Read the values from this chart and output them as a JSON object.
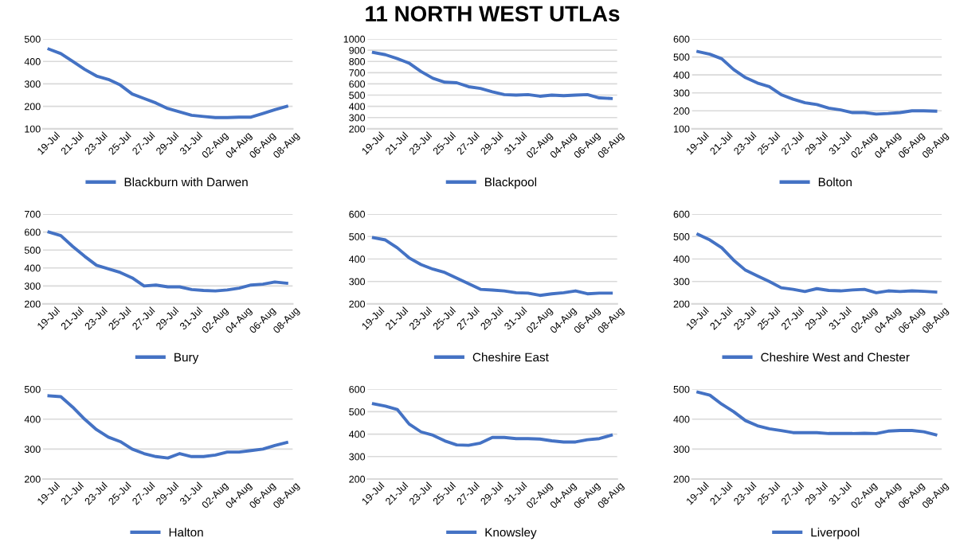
{
  "chart_data": [
    {
      "type": "line",
      "categories": [
        "19-Jul",
        null,
        "21-Jul",
        null,
        "23-Jul",
        null,
        "25-Jul",
        null,
        "27-Jul",
        null,
        "29-Jul",
        null,
        "31-Jul",
        null,
        "02-Aug",
        null,
        "04-Aug",
        null,
        "06-Aug",
        null,
        "08-Aug"
      ],
      "ylim": [
        100,
        500
      ],
      "yticks": [
        100,
        200,
        300,
        400,
        500
      ],
      "grid": "y",
      "legend": "bottom",
      "marker": "none",
      "line_style": "solid",
      "series": [
        {
          "name": "Blackburn with Darwen",
          "color": "#4472c4",
          "values": [
            455,
            435,
            400,
            365,
            335,
            320,
            295,
            255,
            235,
            215,
            190,
            175,
            160,
            155,
            150,
            150,
            152,
            152,
            168,
            185,
            200
          ]
        }
      ]
    },
    {
      "type": "line",
      "title": "11 NORTH WEST UTLAs",
      "categories": [
        "19-Jul",
        null,
        "21-Jul",
        null,
        "23-Jul",
        null,
        "25-Jul",
        null,
        "27-Jul",
        null,
        "29-Jul",
        null,
        "31-Jul",
        null,
        "02-Aug",
        null,
        "04-Aug",
        null,
        "06-Aug",
        null,
        "08-Aug"
      ],
      "ylim": [
        200,
        1000
      ],
      "yticks": [
        200,
        300,
        400,
        500,
        600,
        700,
        800,
        900,
        1000
      ],
      "grid": "y",
      "legend": "bottom",
      "marker": "none",
      "line_style": "solid",
      "series": [
        {
          "name": "Blackpool",
          "color": "#4472c4",
          "values": [
            880,
            860,
            825,
            785,
            710,
            650,
            615,
            610,
            575,
            560,
            530,
            505,
            500,
            505,
            490,
            500,
            495,
            500,
            505,
            475,
            470
          ]
        }
      ]
    },
    {
      "type": "line",
      "categories": [
        "19-Jul",
        null,
        "21-Jul",
        null,
        "23-Jul",
        null,
        "25-Jul",
        null,
        "27-Jul",
        null,
        "29-Jul",
        null,
        "31-Jul",
        null,
        "02-Aug",
        null,
        "04-Aug",
        null,
        "06-Aug",
        null,
        "08-Aug"
      ],
      "ylim": [
        100,
        600
      ],
      "yticks": [
        100,
        200,
        300,
        400,
        500,
        600
      ],
      "grid": "y",
      "legend": "bottom",
      "marker": "none",
      "line_style": "solid",
      "series": [
        {
          "name": "Bolton",
          "color": "#4472c4",
          "values": [
            530,
            515,
            490,
            430,
            385,
            355,
            335,
            290,
            265,
            245,
            235,
            215,
            205,
            190,
            190,
            182,
            185,
            190,
            200,
            200,
            198
          ]
        }
      ]
    },
    {
      "type": "line",
      "categories": [
        "19-Jul",
        null,
        "21-Jul",
        null,
        "23-Jul",
        null,
        "25-Jul",
        null,
        "27-Jul",
        null,
        "29-Jul",
        null,
        "31-Jul",
        null,
        "02-Aug",
        null,
        "04-Aug",
        null,
        "06-Aug",
        null,
        "08-Aug"
      ],
      "ylim": [
        200,
        700
      ],
      "yticks": [
        200,
        300,
        400,
        500,
        600,
        700
      ],
      "grid": "y",
      "legend": "bottom",
      "marker": "none",
      "line_style": "solid",
      "series": [
        {
          "name": "Bury",
          "color": "#4472c4",
          "values": [
            600,
            580,
            520,
            465,
            415,
            395,
            375,
            345,
            300,
            305,
            295,
            295,
            280,
            275,
            272,
            278,
            288,
            305,
            310,
            322,
            315
          ]
        }
      ]
    },
    {
      "type": "line",
      "categories": [
        "19-Jul",
        null,
        "21-Jul",
        null,
        "23-Jul",
        null,
        "25-Jul",
        null,
        "27-Jul",
        null,
        "29-Jul",
        null,
        "31-Jul",
        null,
        "02-Aug",
        null,
        "04-Aug",
        null,
        "06-Aug",
        null,
        "08-Aug"
      ],
      "ylim": [
        200,
        600
      ],
      "yticks": [
        200,
        300,
        400,
        500,
        600
      ],
      "grid": "y",
      "legend": "bottom",
      "marker": "none",
      "line_style": "solid",
      "series": [
        {
          "name": "Cheshire East",
          "color": "#4472c4",
          "values": [
            495,
            485,
            450,
            405,
            375,
            355,
            340,
            315,
            290,
            265,
            262,
            258,
            250,
            248,
            238,
            245,
            250,
            258,
            245,
            248,
            248
          ]
        }
      ]
    },
    {
      "type": "line",
      "categories": [
        "19-Jul",
        null,
        "21-Jul",
        null,
        "23-Jul",
        null,
        "25-Jul",
        null,
        "27-Jul",
        null,
        "29-Jul",
        null,
        "31-Jul",
        null,
        "02-Aug",
        null,
        "04-Aug",
        null,
        "06-Aug",
        null,
        "08-Aug"
      ],
      "ylim": [
        200,
        600
      ],
      "yticks": [
        200,
        300,
        400,
        500,
        600
      ],
      "grid": "y",
      "legend": "bottom",
      "marker": "none",
      "line_style": "solid",
      "series": [
        {
          "name": "Cheshire West and Chester",
          "color": "#4472c4",
          "values": [
            510,
            485,
            450,
            395,
            350,
            325,
            300,
            272,
            265,
            255,
            268,
            260,
            258,
            262,
            265,
            250,
            258,
            255,
            258,
            256,
            253
          ]
        }
      ]
    },
    {
      "type": "line",
      "categories": [
        "19-Jul",
        null,
        "21-Jul",
        null,
        "23-Jul",
        null,
        "25-Jul",
        null,
        "27-Jul",
        null,
        "29-Jul",
        null,
        "31-Jul",
        null,
        "02-Aug",
        null,
        "04-Aug",
        null,
        "06-Aug",
        null,
        "08-Aug"
      ],
      "ylim": [
        200,
        500
      ],
      "yticks": [
        200,
        300,
        400,
        500
      ],
      "grid": "y",
      "legend": "bottom",
      "marker": "none",
      "line_style": "solid",
      "series": [
        {
          "name": "Halton",
          "color": "#4472c4",
          "values": [
            478,
            475,
            440,
            400,
            365,
            340,
            325,
            300,
            285,
            275,
            270,
            285,
            275,
            275,
            280,
            290,
            290,
            295,
            300,
            312,
            322
          ]
        }
      ]
    },
    {
      "type": "line",
      "categories": [
        "19-Jul",
        null,
        "21-Jul",
        null,
        "23-Jul",
        null,
        "25-Jul",
        null,
        "27-Jul",
        null,
        "29-Jul",
        null,
        "31-Jul",
        null,
        "02-Aug",
        null,
        "04-Aug",
        null,
        "06-Aug",
        null,
        "08-Aug"
      ],
      "ylim": [
        200,
        600
      ],
      "yticks": [
        200,
        300,
        400,
        500,
        600
      ],
      "grid": "y",
      "legend": "bottom",
      "marker": "none",
      "line_style": "solid",
      "series": [
        {
          "name": "Knowsley",
          "color": "#4472c4",
          "values": [
            535,
            525,
            510,
            445,
            410,
            395,
            370,
            352,
            350,
            360,
            385,
            385,
            380,
            380,
            378,
            370,
            365,
            365,
            375,
            380,
            395
          ]
        }
      ]
    },
    {
      "type": "line",
      "categories": [
        "19-Jul",
        null,
        "21-Jul",
        null,
        "23-Jul",
        null,
        "25-Jul",
        null,
        "27-Jul",
        null,
        "29-Jul",
        null,
        "31-Jul",
        null,
        "02-Aug",
        null,
        "04-Aug",
        null,
        "06-Aug",
        null,
        "08-Aug"
      ],
      "ylim": [
        200,
        500
      ],
      "yticks": [
        200,
        300,
        400,
        500
      ],
      "grid": "y",
      "legend": "bottom",
      "marker": "none",
      "line_style": "solid",
      "series": [
        {
          "name": "Liverpool",
          "color": "#4472c4",
          "values": [
            490,
            480,
            450,
            425,
            395,
            378,
            368,
            362,
            355,
            355,
            355,
            352,
            352,
            352,
            353,
            352,
            360,
            362,
            362,
            358,
            348
          ]
        }
      ]
    }
  ]
}
